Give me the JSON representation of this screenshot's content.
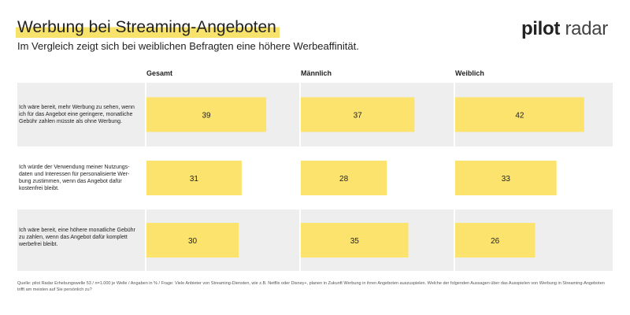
{
  "header": {
    "title": "Werbung bei Streaming-Angeboten",
    "subtitle": "Im Vergleich zeigt sich bei weiblichen Befragten eine höhere Werbeaffinität.",
    "logo_bold": "pilot",
    "logo_light": " radar"
  },
  "colors": {
    "bar": "#fbe36d",
    "row_band": "#eeeeee",
    "title_highlight": "#f7e36b"
  },
  "chart_data": {
    "type": "bar",
    "orientation": "horizontal",
    "unit": "%",
    "xlim": [
      0,
      50
    ],
    "panels": [
      "Gesamt",
      "Männlich",
      "Weiblich"
    ],
    "categories": [
      "Ich wäre bereit, mehr Werbung zu sehen, wenn ich für das Angebot eine geringere, monatliche Gebühr zahlen müsste als ohne Werbung.",
      "Ich würde der Verwendung meiner Nutzungsdaten und Interessen für personalisierte Werbung zustimmen, wenn das Angebot dafür kostenfrei bleibt.",
      "Ich wäre bereit, eine höhere monatliche Gebühr zu zahlen, wenn das Angebot dafür komplett werbefrei bleibt."
    ],
    "categories_display": [
      "Ich wäre bereit, mehr Werbung zu sehen, wenn ich für das Angebot eine geringere, monatliche Gebühr zahlen müsste als ohne Werbung.",
      "Ich würde der Verwendung meiner Nutzungs-daten und Interessen für personalisierte Wer-bung zustimmen, wenn das Angebot dafür kostenfrei bleibt.",
      "Ich wäre bereit, eine höhere monatliche Gebühr zu zahlen, wenn das Angebot dafür komplett werbefrei bleibt."
    ],
    "series": [
      {
        "name": "Gesamt",
        "values": [
          39,
          31,
          30
        ]
      },
      {
        "name": "Männlich",
        "values": [
          37,
          28,
          35
        ]
      },
      {
        "name": "Weiblich",
        "values": [
          42,
          33,
          26
        ]
      }
    ],
    "grid": false,
    "legend": "none"
  },
  "footer": {
    "source": "Quelle: pilot Radar Erhebungswelle 53 / n=1.000 je Welle / Angaben in % / Frage: Viele Anbieter von Streaming-Diensten, wie z.B. Netflix oder Disney+, planen in Zukunft Werbung in ihren Angeboten auszuspielen. Welche der folgenden Aussagen über das Ausspielen von Werbung in Streaming-Angeboten trifft am meisten auf Sie persönlich zu?"
  }
}
